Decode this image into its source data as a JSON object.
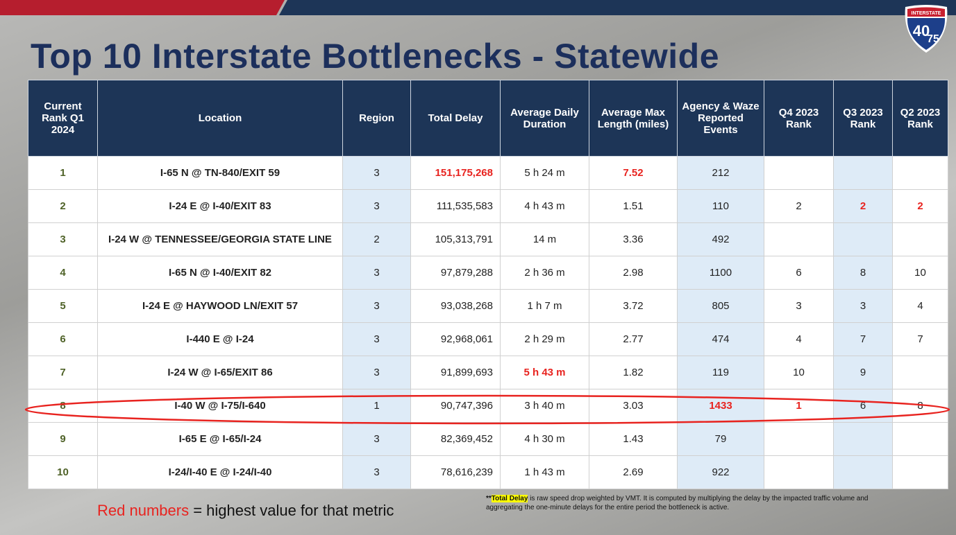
{
  "title": "Top 10 Interstate Bottlenecks - Statewide",
  "shield": {
    "label": "INTERSTATE",
    "top": "40",
    "bottom": "75"
  },
  "table": {
    "headers": [
      "Current Rank Q1 2024",
      "Location",
      "Region",
      "Total Delay",
      "Average Daily Duration",
      "Average Max Length (miles)",
      "Agency & Waze Reported Events",
      "Q4 2023 Rank",
      "Q3 2023 Rank",
      "Q2 2023 Rank"
    ],
    "rows": [
      [
        "1",
        "I-65 N @ TN-840/EXIT 59",
        "3",
        "151,175,268",
        "5 h 24 m",
        "7.52",
        "212",
        null,
        null,
        null
      ],
      [
        "2",
        "I-24 E @ I-40/EXIT 83",
        "3",
        "111,535,583",
        "4 h 43 m",
        "1.51",
        "110",
        "2",
        "2",
        "2"
      ],
      [
        "3",
        "I-24 W @ TENNESSEE/GEORGIA STATE LINE",
        "2",
        "105,313,791",
        "14 m",
        "3.36",
        "492",
        null,
        null,
        null
      ],
      [
        "4",
        "I-65 N @ I-40/EXIT 82",
        "3",
        "97,879,288",
        "2 h 36 m",
        "2.98",
        "1100",
        "6",
        "8",
        "10"
      ],
      [
        "5",
        "I-24 E @ HAYWOOD LN/EXIT 57",
        "3",
        "93,038,268",
        "1 h 7 m",
        "3.72",
        "805",
        "3",
        "3",
        "4"
      ],
      [
        "6",
        "I-440 E @ I-24",
        "3",
        "92,968,061",
        "2 h 29 m",
        "2.77",
        "474",
        "4",
        "7",
        "7"
      ],
      [
        "7",
        "I-24 W @ I-65/EXIT 86",
        "3",
        "91,899,693",
        "5 h 43 m",
        "1.82",
        "119",
        "10",
        "9",
        null
      ],
      [
        "8",
        "I-40 W @ I-75/I-640",
        "1",
        "90,747,396",
        "3 h 40 m",
        "3.03",
        "1433",
        "1",
        "6",
        "8"
      ],
      [
        "9",
        "I-65 E @ I-65/I-24",
        "3",
        "82,369,452",
        "4 h 30 m",
        "1.43",
        "79",
        null,
        null,
        null
      ],
      [
        "10",
        "I-24/I-40 E @ I-24/I-40",
        "3",
        "78,616,239",
        "1 h 43 m",
        "2.69",
        "922",
        null,
        null,
        null
      ]
    ],
    "highlight_color": "#e8231f",
    "highlighted_cells": [
      [
        0,
        3
      ],
      [
        0,
        5
      ],
      [
        1,
        8
      ],
      [
        1,
        9
      ],
      [
        6,
        4
      ],
      [
        7,
        6
      ],
      [
        7,
        7
      ]
    ]
  },
  "legend": {
    "red_text": "Red numbers",
    "rest": "= highest value for that metric"
  },
  "footnote": {
    "prefix": "**",
    "highlight": "Total Delay",
    "text": "is raw speed drop weighted by VMT. It is computed by multiplying the delay by the impacted traffic volume and aggregating the one-minute delays for the entire period the bottleneck is active."
  }
}
